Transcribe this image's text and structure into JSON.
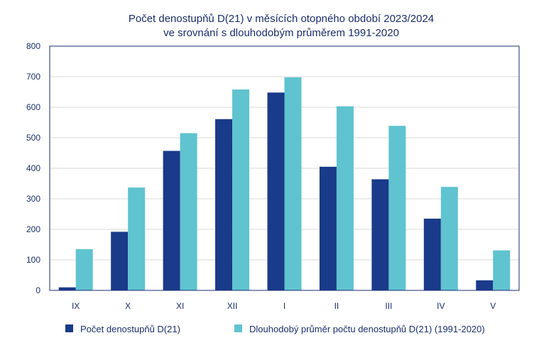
{
  "chart_data": {
    "type": "bar",
    "title_lines": [
      "Počet denostupňů D(21) v měsících otopného období 2023/2024",
      "ve srovnání s dlouhodobým průměrem 1991-2020"
    ],
    "xlabel": "",
    "ylabel": "",
    "categories": [
      "IX",
      "X",
      "XI",
      "XII",
      "I",
      "II",
      "III",
      "IV",
      "V"
    ],
    "series": [
      {
        "name": "Počet denostupňů D(21)",
        "color": "#1a3a8a",
        "values": [
          10,
          192,
          457,
          561,
          648,
          405,
          364,
          235,
          33
        ]
      },
      {
        "name": "Dlouhodobý průměr počtu denostupňů D(21) (1991-2020)",
        "color": "#5fc3d0",
        "values": [
          135,
          337,
          515,
          658,
          698,
          603,
          539,
          339,
          131
        ]
      }
    ],
    "ylim": [
      0,
      800
    ],
    "yticks": [
      0,
      100,
      200,
      300,
      400,
      500,
      600,
      700,
      800
    ],
    "grid": true,
    "legend_position": "bottom",
    "colors": {
      "text": "#1a2e6e",
      "axis": "#1a2e6e",
      "grid": "#d9d9d9"
    }
  }
}
